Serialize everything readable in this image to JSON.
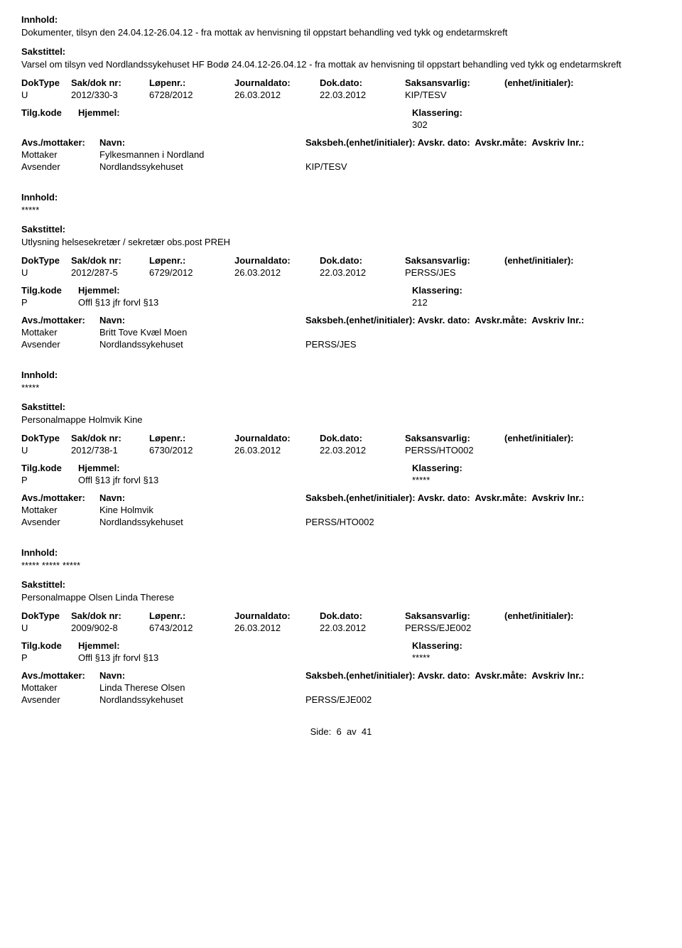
{
  "labels": {
    "innhold": "Innhold:",
    "sakstittel": "Sakstittel:",
    "doktype": "DokType",
    "sakdok": "Sak/dok nr:",
    "lopenr": "Løpenr.:",
    "jdato": "Journaldato:",
    "ddato": "Dok.dato:",
    "saksansvarlig": "Saksansvarlig:",
    "enhet": "(enhet/initialer):",
    "tilgkode": "Tilg.kode",
    "hjemmel": "Hjemmel:",
    "klassering": "Klassering:",
    "avsmottaker": "Avs./mottaker:",
    "navn": "Navn:",
    "saksbeh": "Saksbeh.(enhet/initialer):",
    "avskrdato": "Avskr. dato:",
    "avskrmate": "Avskr.måte:",
    "avskrivlnr": "Avskriv lnr.:",
    "mottaker": "Mottaker",
    "avsender": "Avsender"
  },
  "entries": [
    {
      "innhold": "Dokumenter, tilsyn den 24.04.12-26.04.12 - fra mottak av henvisning til oppstart behandling ved tykk og endetarmskreft",
      "sakstittel": "Varsel om tilsyn ved Nordlandssykehuset HF Bodø 24.04.12-26.04.12 - fra mottak av henvisning til oppstart behandling ved tykk og endetarmskreft",
      "doktype": "U",
      "sakdok": "2012/330-3",
      "lopenr": "6728/2012",
      "jdato": "26.03.2012",
      "ddato": "22.03.2012",
      "saksansvarlig": "KIP/TESV",
      "tilgkode": "",
      "hjemmel": "",
      "klassering": "302",
      "mottaker_navn": "Fylkesmannen i Nordland",
      "avsender_navn": "Nordlandssykehuset",
      "saksbeh": "KIP/TESV"
    },
    {
      "innhold": "*****",
      "sakstittel": "Utlysning helsesekretær / sekretær obs.post PREH",
      "doktype": "U",
      "sakdok": "2012/287-5",
      "lopenr": "6729/2012",
      "jdato": "26.03.2012",
      "ddato": "22.03.2012",
      "saksansvarlig": "PERSS/JES",
      "tilgkode": "P",
      "hjemmel": "Offl §13 jfr forvl §13",
      "klassering": "212",
      "mottaker_navn": "Britt Tove Kvæl Moen",
      "avsender_navn": "Nordlandssykehuset",
      "saksbeh": "PERSS/JES"
    },
    {
      "innhold": "*****",
      "sakstittel": "Personalmappe Holmvik Kine",
      "doktype": "U",
      "sakdok": "2012/738-1",
      "lopenr": "6730/2012",
      "jdato": "26.03.2012",
      "ddato": "22.03.2012",
      "saksansvarlig": "PERSS/HTO002",
      "tilgkode": "P",
      "hjemmel": "Offl §13 jfr forvl §13",
      "klassering": "*****",
      "mottaker_navn": "Kine Holmvik",
      "avsender_navn": "Nordlandssykehuset",
      "saksbeh": "PERSS/HTO002"
    },
    {
      "innhold": "***** ***** *****",
      "sakstittel": "Personalmappe Olsen Linda Therese",
      "doktype": "U",
      "sakdok": "2009/902-8",
      "lopenr": "6743/2012",
      "jdato": "26.03.2012",
      "ddato": "22.03.2012",
      "saksansvarlig": "PERSS/EJE002",
      "tilgkode": "P",
      "hjemmel": "Offl §13 jfr forvl §13",
      "klassering": "*****",
      "mottaker_navn": "Linda Therese Olsen",
      "avsender_navn": "Nordlandssykehuset",
      "saksbeh": "PERSS/EJE002"
    }
  ],
  "footer": {
    "side": "Side:",
    "page": "6",
    "av": "av",
    "total": "41"
  }
}
